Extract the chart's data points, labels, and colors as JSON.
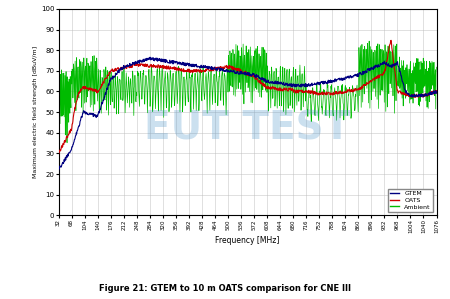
{
  "title": "Figure 21: GTEM to 10 m OATS comparison for CNE III",
  "xlabel": "Frequency [MHz]",
  "ylabel": "Maximum electric field strength [dBuV/m]",
  "xlim": [
    32,
    1076
  ],
  "ylim": [
    0,
    100
  ],
  "yticks": [
    0,
    10,
    20,
    30,
    40,
    50,
    60,
    70,
    80,
    90,
    100
  ],
  "xticks": [
    32,
    68,
    104,
    140,
    176,
    212,
    248,
    284,
    320,
    356,
    392,
    428,
    464,
    500,
    536,
    572,
    608,
    644,
    680,
    716,
    752,
    788,
    824,
    860,
    896,
    932,
    968,
    1004,
    1040,
    1076
  ],
  "watermark_text": "EUT TEST",
  "watermark_color": "#5599cc",
  "watermark_alpha": 0.3,
  "gtem_color": "#000080",
  "oats_color": "#cc0000",
  "ambient_color": "#00bb00",
  "legend_labels": [
    "GTEM",
    "OATS",
    "Ambient"
  ],
  "background_color": "#ffffff",
  "grid_color": "#bbbbbb"
}
